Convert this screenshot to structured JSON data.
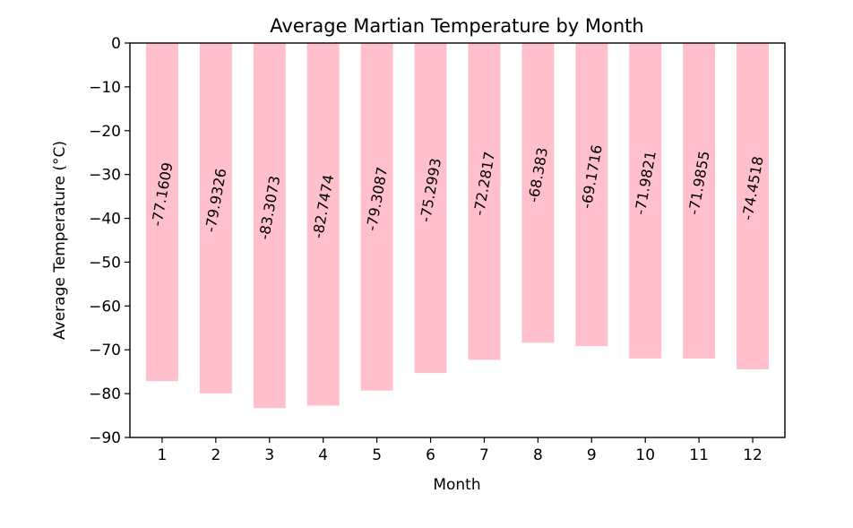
{
  "chart_data": {
    "type": "bar",
    "title": "Average Martian Temperature by Month",
    "xlabel": "Month",
    "ylabel": "Average Temperature (°C)",
    "ylim": [
      -90,
      0
    ],
    "yticks": [
      0,
      -10,
      -20,
      -30,
      -40,
      -50,
      -60,
      -70,
      -80,
      -90
    ],
    "categories": [
      "1",
      "2",
      "3",
      "4",
      "5",
      "6",
      "7",
      "8",
      "9",
      "10",
      "11",
      "12"
    ],
    "values": [
      -77.1609,
      -79.9326,
      -83.3073,
      -82.7474,
      -79.3087,
      -75.2993,
      -72.2817,
      -68.383,
      -69.1716,
      -71.9821,
      -71.9855,
      -74.4518
    ],
    "data_labels": [
      "-77.1609",
      "-79.9326",
      "-83.3073",
      "-82.7474",
      "-79.3087",
      "-75.2993",
      "-72.2817",
      "-68.383",
      "-69.1716",
      "-71.9821",
      "-71.9855",
      "-74.4518"
    ],
    "bar_color": "#ffc0cb",
    "grid": false,
    "legend": "none"
  }
}
